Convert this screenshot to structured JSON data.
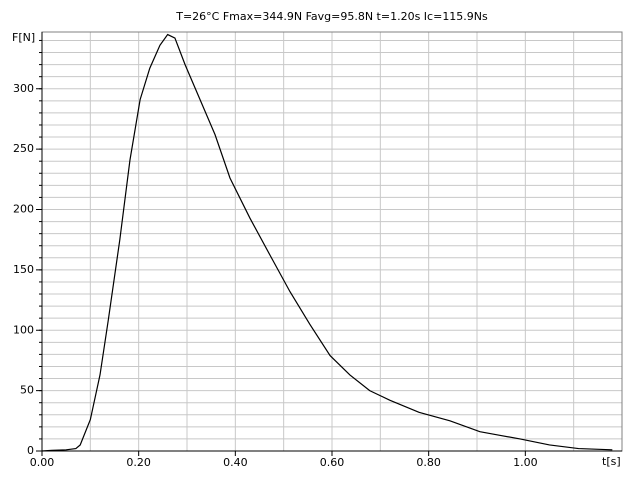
{
  "chart_data": {
    "type": "line",
    "title": "T=26°C   Fmax=344.9N   Favg=95.8N   t=1.20s   Ic=115.9Ns",
    "xlabel": "t[s]",
    "ylabel": "F[N]",
    "x": [
      0,
      0.02,
      0.05,
      0.07,
      0.079,
      0.1,
      0.12,
      0.137,
      0.161,
      0.182,
      0.203,
      0.223,
      0.244,
      0.26,
      0.275,
      0.296,
      0.327,
      0.358,
      0.389,
      0.43,
      0.472,
      0.513,
      0.554,
      0.596,
      0.637,
      0.678,
      0.72,
      0.78,
      0.844,
      0.906,
      0.947,
      0.989,
      1.05,
      1.11,
      1.18
    ],
    "series": [
      {
        "color": "#000000",
        "values": [
          0,
          0.5,
          1,
          2,
          5,
          26,
          63,
          108,
          175,
          241,
          291,
          317,
          336,
          344.9,
          342,
          320,
          291,
          262,
          226,
          193,
          162,
          132,
          105,
          79,
          63,
          50,
          42,
          32,
          25,
          16,
          13,
          10,
          5,
          2,
          1
        ]
      }
    ],
    "xlim": [
      0,
      1.2
    ],
    "ylim": [
      0,
      347
    ],
    "xticks": [
      {
        "value": 0,
        "label": "0.00"
      },
      {
        "value": 0.2,
        "label": "0.20"
      },
      {
        "value": 0.4,
        "label": "0.40"
      },
      {
        "value": 0.6,
        "label": "0.60"
      },
      {
        "value": 0.8,
        "label": "0.80"
      },
      {
        "value": 1,
        "label": "1.00"
      }
    ],
    "yticks": [
      0,
      50,
      100,
      150,
      200,
      250,
      300
    ],
    "xgrid": [
      0.1,
      0.2,
      0.3,
      0.4,
      0.5,
      0.6,
      0.7,
      0.8,
      0.9,
      1,
      1.1
    ],
    "ygrid": [
      10,
      20,
      30,
      40,
      50,
      60,
      70,
      80,
      90,
      100,
      110,
      120,
      130,
      140,
      150,
      160,
      170,
      180,
      190,
      200,
      210,
      220,
      230,
      240,
      250,
      260,
      270,
      280,
      290,
      300,
      310,
      320,
      330,
      340
    ],
    "grid": true
  }
}
